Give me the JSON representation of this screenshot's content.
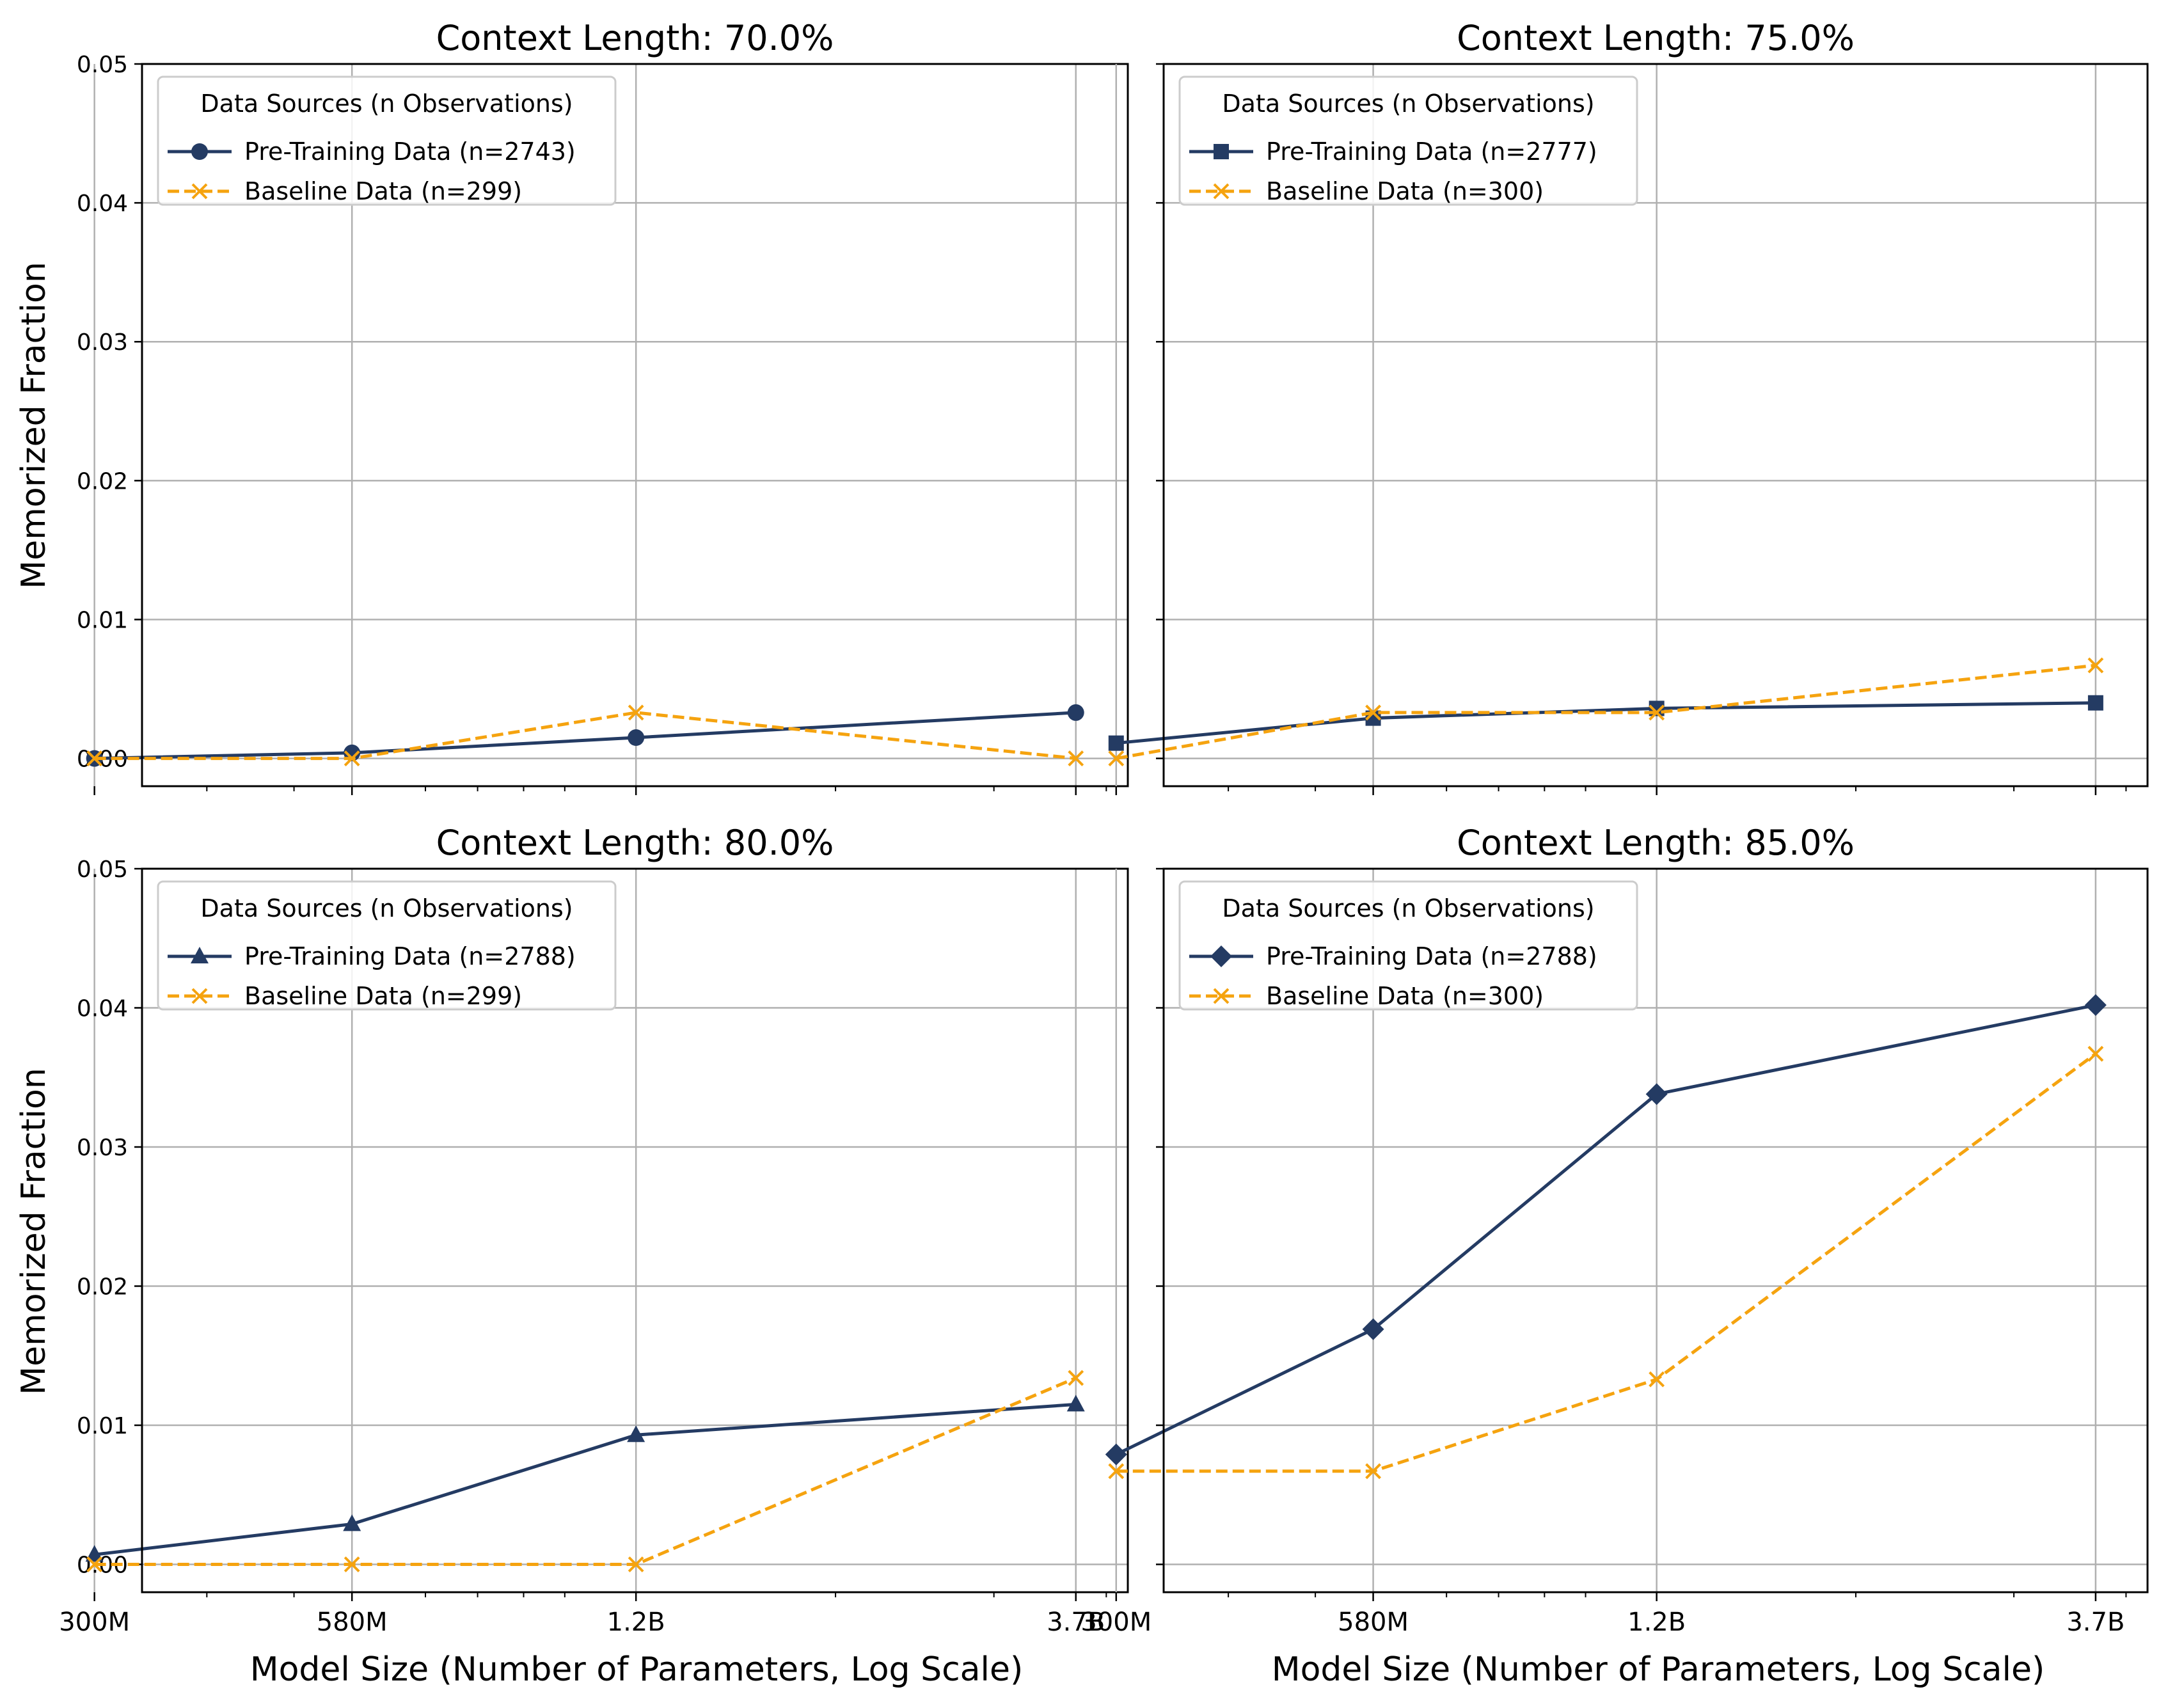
{
  "figure": {
    "ylabel": "Memorized Fraction",
    "xlabel": "Model Size (Number of Parameters, Log Scale)"
  },
  "colors": {
    "pretraining": "#243b63",
    "baseline": "#f5a30f",
    "grid": "#b0b0b0",
    "axis": "#000000"
  },
  "chart_data": [
    {
      "type": "line",
      "title": "Context Length: 70.0%",
      "x_scale": "log",
      "x_values": [
        300000000.0,
        580000000.0,
        1200000000.0,
        3700000000.0
      ],
      "x_ticklabels": [
        "300M",
        "580M",
        "1.2B",
        "3.7B"
      ],
      "ylim": [
        -0.002,
        0.05
      ],
      "y_ticks": [
        "0.00",
        "0.01",
        "0.02",
        "0.03",
        "0.04",
        "0.05"
      ],
      "grid": true,
      "legend": {
        "title": "Data Sources (n Observations)",
        "placement": "upper left"
      },
      "series": [
        {
          "name": "Pre-Training Data (n=2743)",
          "values": [
            0.0,
            0.0004,
            0.0015,
            0.0033
          ],
          "style": "solid",
          "marker": "circle"
        },
        {
          "name": "Baseline Data (n=299)",
          "values": [
            0.0,
            0.0,
            0.0033,
            0.0
          ],
          "style": "dashed",
          "marker": "x"
        }
      ]
    },
    {
      "type": "line",
      "title": "Context Length: 75.0%",
      "x_scale": "log",
      "x_values": [
        300000000.0,
        580000000.0,
        1200000000.0,
        3700000000.0
      ],
      "x_ticklabels": [
        "300M",
        "580M",
        "1.2B",
        "3.7B"
      ],
      "ylim": [
        -0.002,
        0.05
      ],
      "y_ticks": [
        "0.00",
        "0.01",
        "0.02",
        "0.03",
        "0.04",
        "0.05"
      ],
      "grid": true,
      "legend": {
        "title": "Data Sources (n Observations)",
        "placement": "upper left"
      },
      "series": [
        {
          "name": "Pre-Training Data (n=2777)",
          "values": [
            0.0011,
            0.0029,
            0.0036,
            0.004
          ],
          "style": "solid",
          "marker": "square"
        },
        {
          "name": "Baseline Data (n=300)",
          "values": [
            0.0,
            0.0033,
            0.0033,
            0.0067
          ],
          "style": "dashed",
          "marker": "x"
        }
      ]
    },
    {
      "type": "line",
      "title": "Context Length: 80.0%",
      "x_scale": "log",
      "x_values": [
        300000000.0,
        580000000.0,
        1200000000.0,
        3700000000.0
      ],
      "x_ticklabels": [
        "300M",
        "580M",
        "1.2B",
        "3.7B"
      ],
      "ylim": [
        -0.002,
        0.05
      ],
      "y_ticks": [
        "0.00",
        "0.01",
        "0.02",
        "0.03",
        "0.04",
        "0.05"
      ],
      "grid": true,
      "legend": {
        "title": "Data Sources (n Observations)",
        "placement": "upper left"
      },
      "series": [
        {
          "name": "Pre-Training Data (n=2788)",
          "values": [
            0.0007,
            0.0029,
            0.0093,
            0.0115
          ],
          "style": "solid",
          "marker": "triangle"
        },
        {
          "name": "Baseline Data (n=299)",
          "values": [
            0.0,
            0.0,
            0.0,
            0.0134
          ],
          "style": "dashed",
          "marker": "x"
        }
      ]
    },
    {
      "type": "line",
      "title": "Context Length: 85.0%",
      "x_scale": "log",
      "x_values": [
        300000000.0,
        580000000.0,
        1200000000.0,
        3700000000.0
      ],
      "x_ticklabels": [
        "300M",
        "580M",
        "1.2B",
        "3.7B"
      ],
      "ylim": [
        -0.002,
        0.05
      ],
      "y_ticks": [
        "0.00",
        "0.01",
        "0.02",
        "0.03",
        "0.04",
        "0.05"
      ],
      "grid": true,
      "legend": {
        "title": "Data Sources (n Observations)",
        "placement": "upper left"
      },
      "series": [
        {
          "name": "Pre-Training Data (n=2788)",
          "values": [
            0.0079,
            0.0169,
            0.0338,
            0.0402
          ],
          "style": "solid",
          "marker": "diamond"
        },
        {
          "name": "Baseline Data (n=300)",
          "values": [
            0.0067,
            0.0067,
            0.0133,
            0.0367
          ],
          "style": "dashed",
          "marker": "x"
        }
      ]
    }
  ]
}
